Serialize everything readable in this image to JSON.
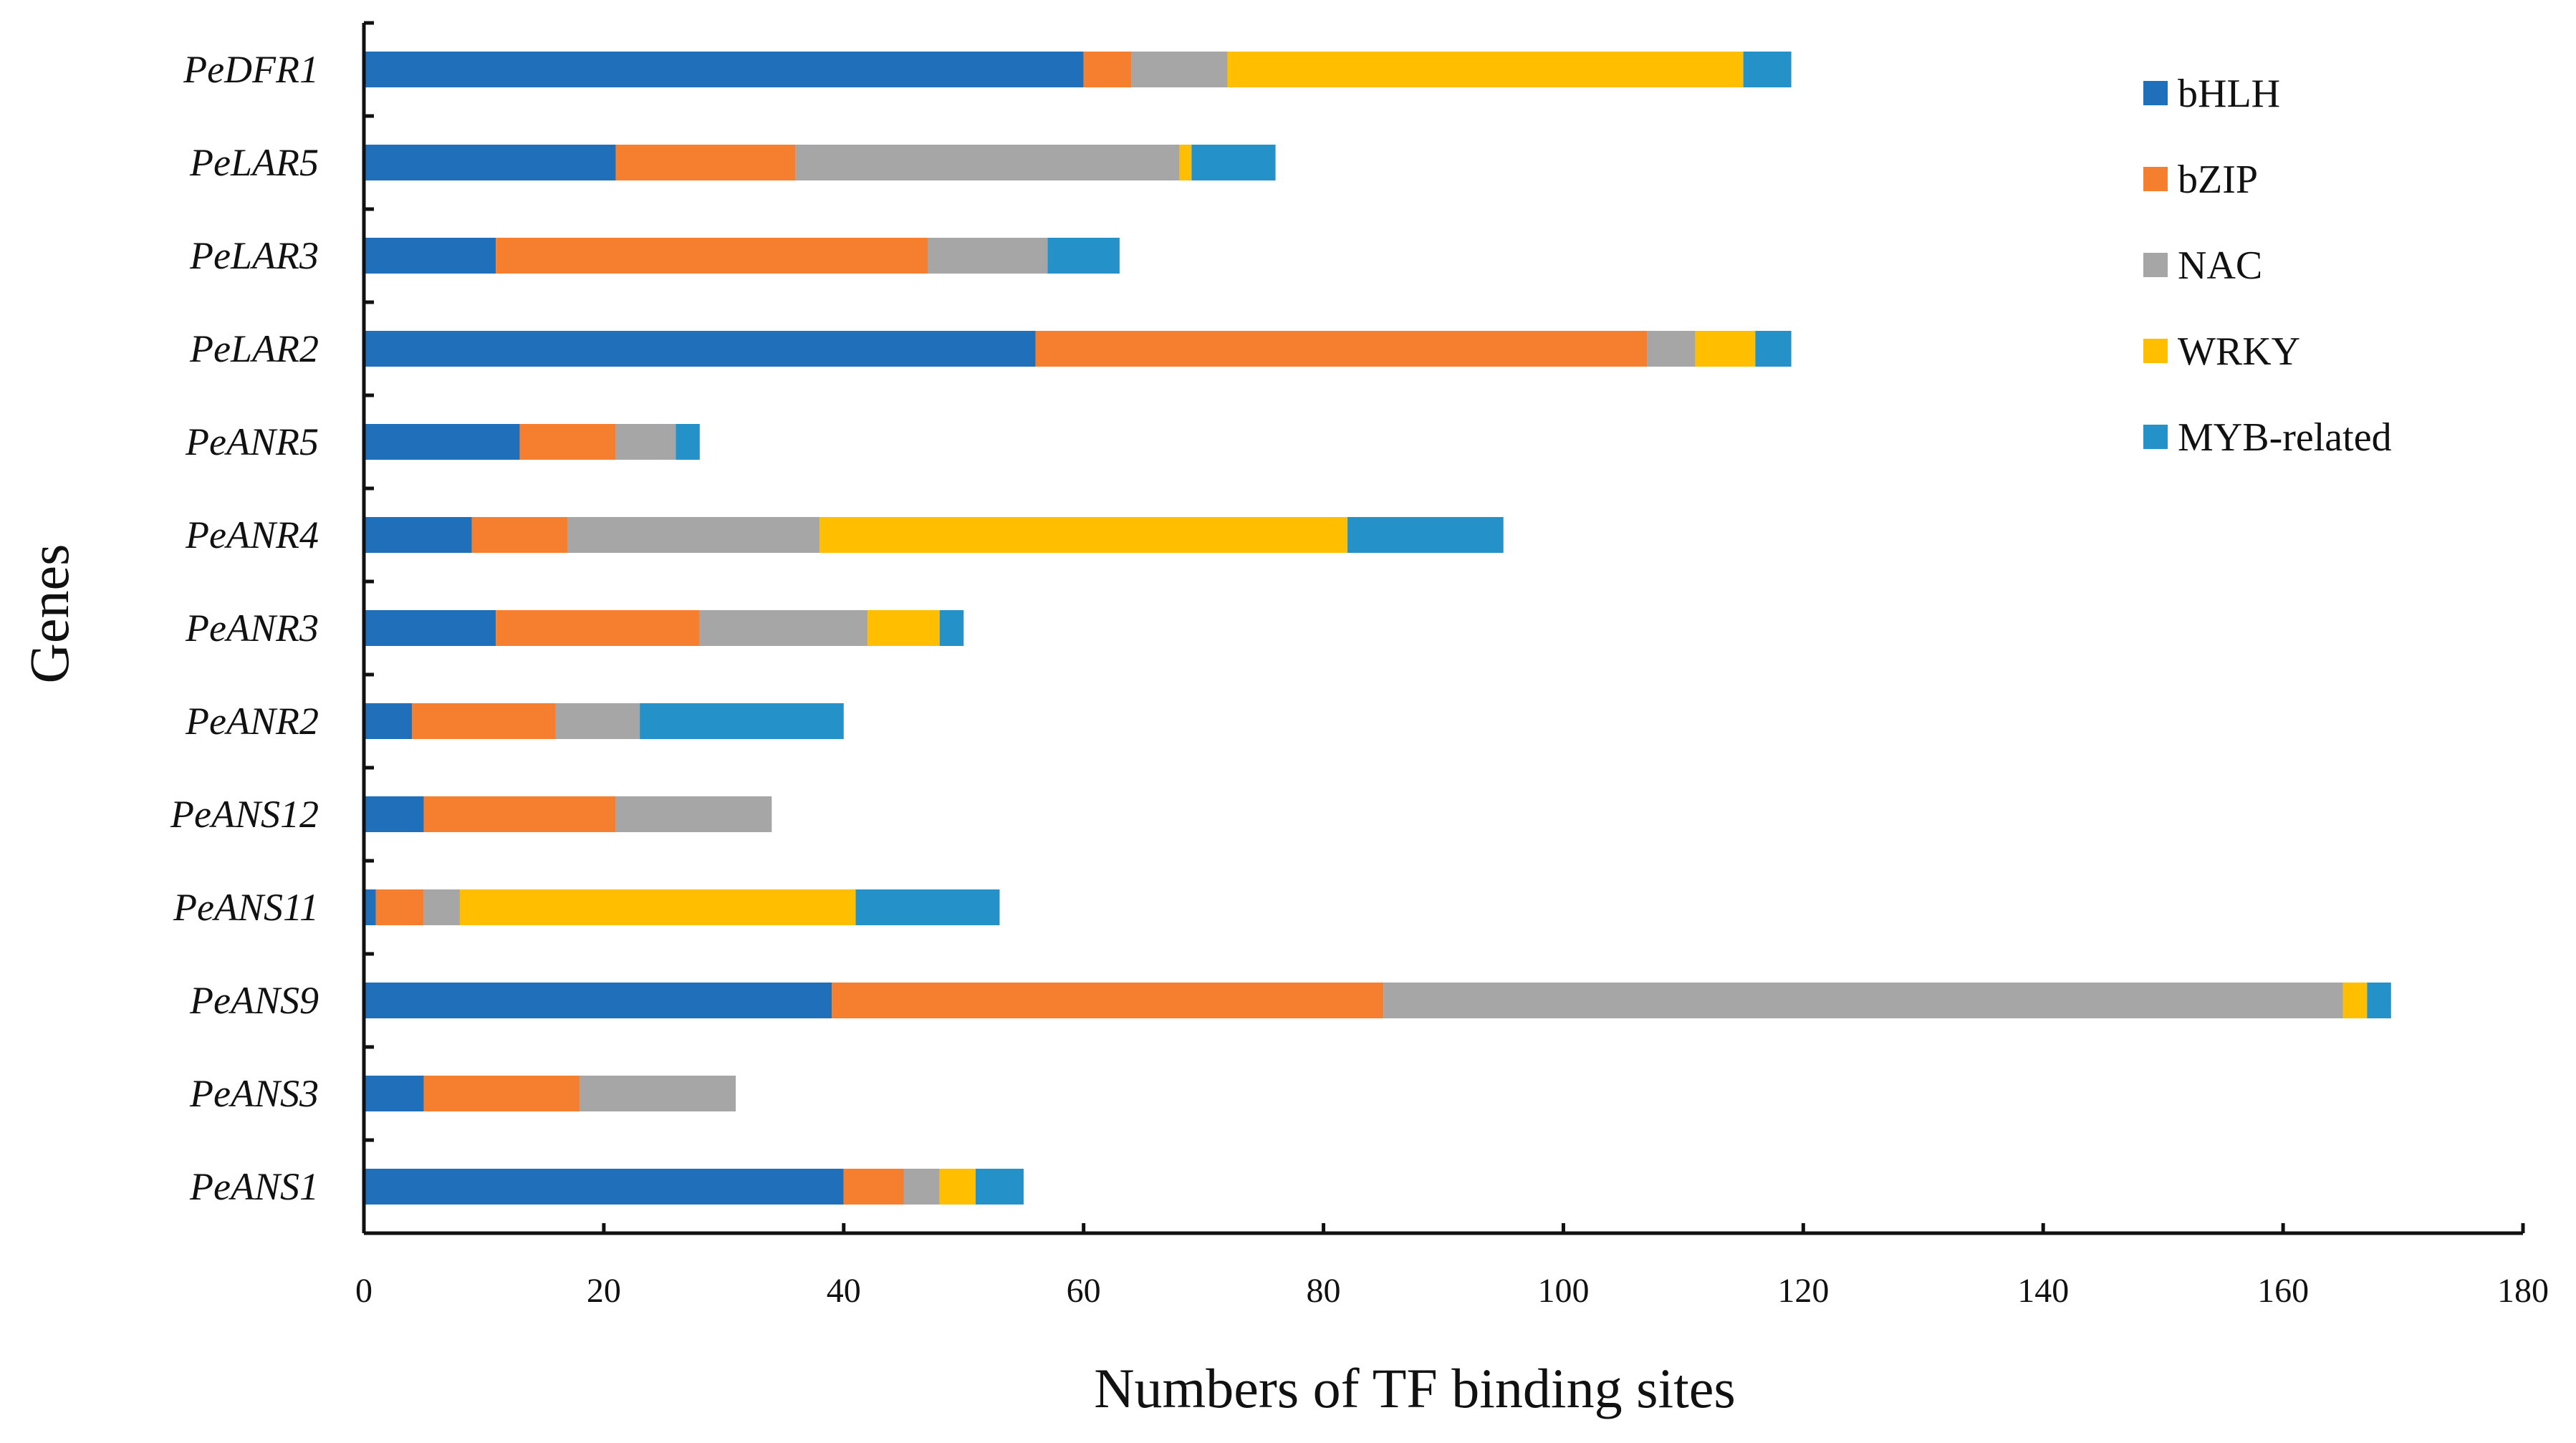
{
  "chart_data": {
    "type": "bar",
    "orientation": "horizontal",
    "stacked": true,
    "title": "",
    "xlabel": "Numbers of TF binding sites",
    "ylabel": "Genes",
    "xlim": [
      0,
      180
    ],
    "xticks": [
      0,
      20,
      40,
      60,
      80,
      100,
      120,
      140,
      160,
      180
    ],
    "grid": false,
    "legend_position": "top-right",
    "categories": [
      "PeDFR1",
      "PeLAR5",
      "PeLAR3",
      "PeLAR2",
      "PeANR5",
      "PeANR4",
      "PeANR3",
      "PeANR2",
      "PeANS12",
      "PeANS11",
      "PeANS9",
      "PeANS3",
      "PeANS1"
    ],
    "series": [
      {
        "name": "bHLH",
        "color": "#1f6fba",
        "values": [
          60,
          21,
          11,
          56,
          13,
          9,
          11,
          4,
          5,
          1,
          39,
          5,
          40
        ]
      },
      {
        "name": "bZIP",
        "color": "#f57f2f",
        "values": [
          4,
          15,
          36,
          51,
          8,
          8,
          17,
          12,
          16,
          4,
          46,
          13,
          5
        ]
      },
      {
        "name": "NAC",
        "color": "#a6a6a6",
        "values": [
          8,
          32,
          10,
          4,
          5,
          21,
          14,
          7,
          13,
          3,
          80,
          13,
          3
        ]
      },
      {
        "name": "WRKY",
        "color": "#ffbf00",
        "values": [
          43,
          1,
          0,
          5,
          0,
          44,
          6,
          0,
          0,
          33,
          2,
          0,
          3
        ]
      },
      {
        "name": "MYB-related",
        "color": "#2492c9",
        "values": [
          4,
          7,
          6,
          3,
          2,
          13,
          2,
          17,
          0,
          12,
          2,
          0,
          4
        ]
      }
    ]
  }
}
